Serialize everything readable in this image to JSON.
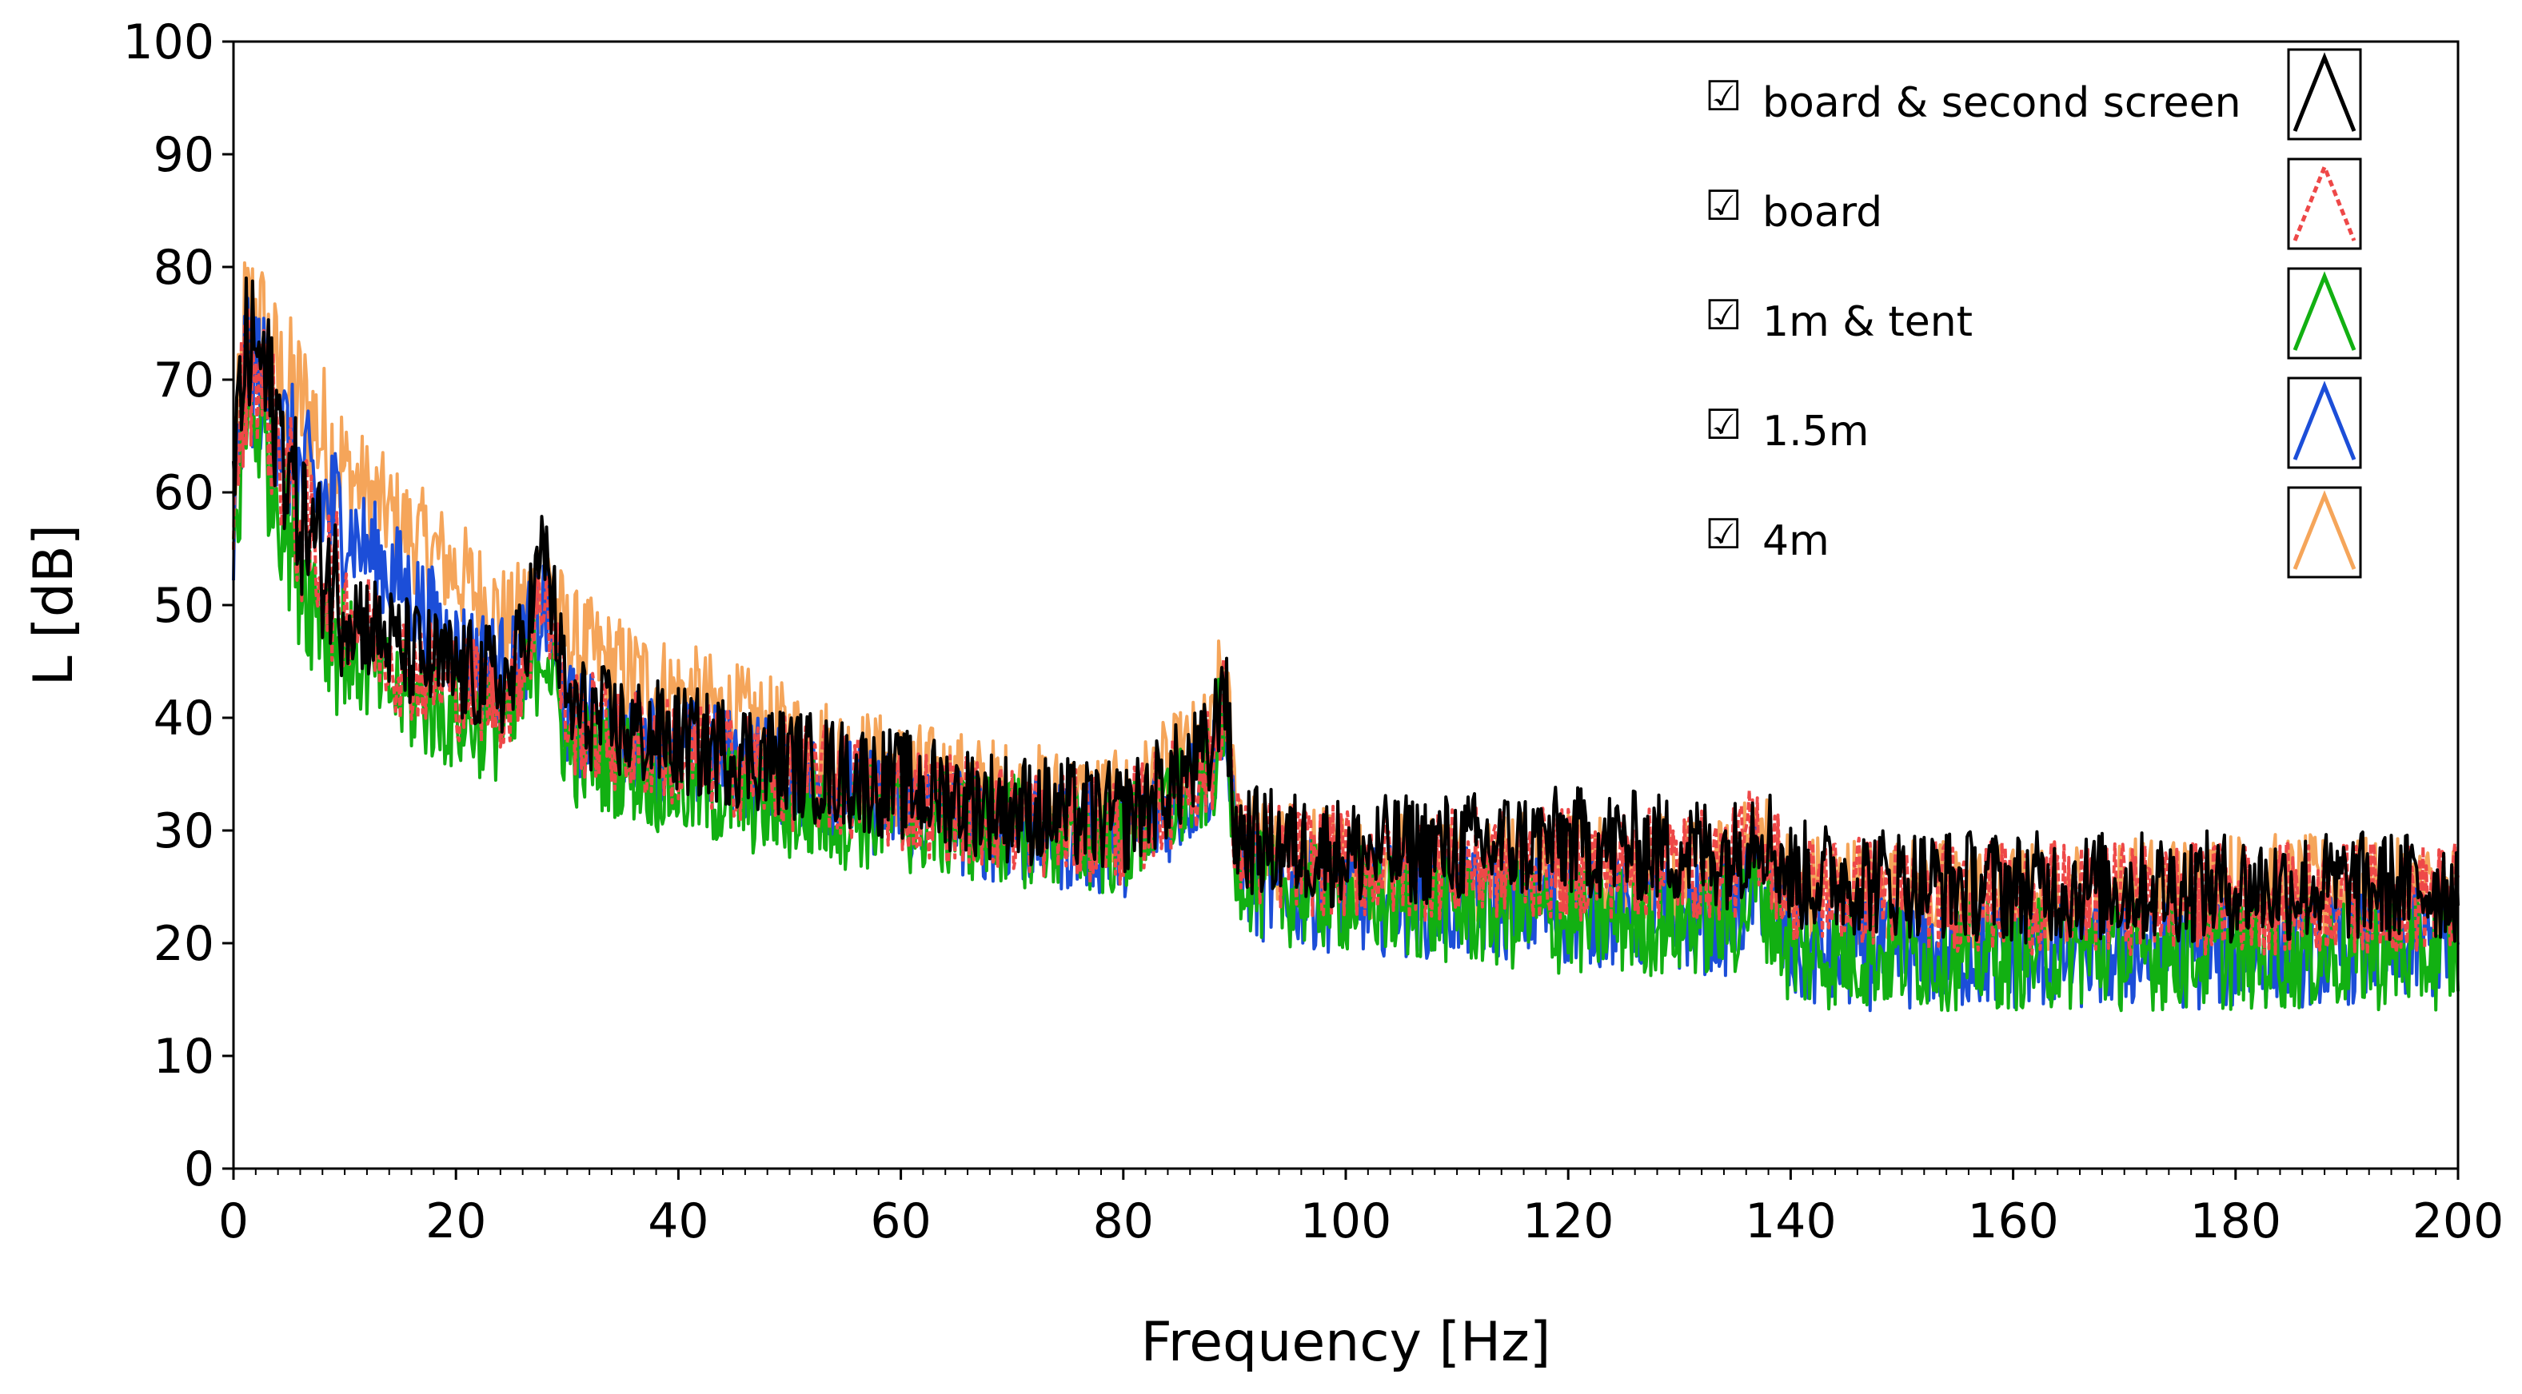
{
  "chart_data": {
    "type": "line",
    "xlabel": "Frequency [Hz]",
    "ylabel": "L [dB]",
    "xlim": [
      0,
      200
    ],
    "ylim": [
      0,
      100
    ],
    "x_ticks": [
      0,
      20,
      40,
      60,
      80,
      100,
      120,
      140,
      160,
      180,
      200
    ],
    "y_ticks": [
      0,
      10,
      20,
      30,
      40,
      50,
      60,
      70,
      80,
      90,
      100
    ],
    "grid": false,
    "legend_position": "top-right",
    "series": [
      {
        "name": "4m",
        "color": "#F5A55A",
        "style": "solid",
        "x": [
          0,
          1,
          2,
          4,
          6,
          10,
          15,
          20,
          25,
          28,
          30,
          35,
          40,
          50,
          60,
          70,
          80,
          88,
          89,
          90,
          92,
          100,
          120,
          135,
          137,
          140,
          160,
          180,
          200
        ],
        "y": [
          58,
          75,
          76,
          70,
          68,
          62,
          57,
          53,
          48,
          53,
          47,
          44,
          42,
          38,
          35,
          33,
          32,
          38,
          45,
          33,
          28,
          27,
          27,
          26,
          30,
          25,
          24,
          25,
          24
        ]
      },
      {
        "name": "1.5m",
        "color": "#1C4ED8",
        "style": "solid",
        "x": [
          0,
          1,
          2,
          4,
          6,
          10,
          15,
          20,
          25,
          28,
          30,
          35,
          40,
          50,
          60,
          70,
          80,
          88,
          89,
          90,
          92,
          100,
          120,
          135,
          137,
          140,
          160,
          180,
          200
        ],
        "y": [
          55,
          70,
          71,
          66,
          61,
          57,
          52,
          46,
          44,
          50,
          40,
          38,
          37,
          35,
          32,
          30,
          29,
          35,
          42,
          28,
          25,
          24,
          23,
          22,
          26,
          19,
          19,
          19,
          20
        ]
      },
      {
        "name": "1m & tent",
        "color": "#12B012",
        "style": "solid",
        "x": [
          0,
          1,
          2,
          4,
          6,
          10,
          15,
          20,
          25,
          28,
          30,
          35,
          40,
          50,
          60,
          70,
          80,
          88,
          89,
          90,
          92,
          100,
          120,
          135,
          137,
          140,
          160,
          180,
          200
        ],
        "y": [
          54,
          66,
          67,
          60,
          53,
          46,
          42,
          40,
          39,
          47,
          37,
          36,
          34,
          32,
          31,
          30,
          29,
          35,
          41,
          28,
          25,
          24,
          22,
          22,
          25,
          19,
          19,
          19,
          19
        ]
      },
      {
        "name": "board",
        "color": "#EE4848",
        "style": "dashed",
        "x": [
          0,
          1,
          2,
          4,
          6,
          10,
          15,
          20,
          25,
          28,
          30,
          35,
          40,
          50,
          60,
          70,
          80,
          88,
          89,
          90,
          92,
          100,
          120,
          135,
          137,
          140,
          160,
          180,
          200
        ],
        "y": [
          60,
          70,
          72,
          64,
          57,
          50,
          45,
          43,
          42,
          52,
          40,
          38,
          37,
          35,
          33,
          31,
          30,
          36,
          43,
          29,
          28,
          27,
          27,
          27,
          30,
          25,
          24,
          24,
          24
        ]
      },
      {
        "name": "board & second screen",
        "color": "#000000",
        "style": "solid",
        "x": [
          0,
          1,
          2,
          4,
          6,
          10,
          15,
          20,
          25,
          28,
          30,
          35,
          40,
          50,
          60,
          70,
          80,
          88,
          89,
          90,
          92,
          100,
          120,
          135,
          137,
          140,
          160,
          180,
          200
        ],
        "y": [
          62,
          72,
          73,
          66,
          58,
          50,
          46,
          44,
          43,
          55,
          41,
          39,
          38,
          36,
          34,
          32,
          31,
          37,
          45,
          30,
          29,
          28,
          29,
          28,
          31,
          26,
          25,
          25,
          25
        ]
      }
    ],
    "legend": [
      {
        "label": "board & second screen",
        "checked": "☑",
        "color": "#000000",
        "style": "solid"
      },
      {
        "label": "board",
        "checked": "☑",
        "color": "#EE4848",
        "style": "dashed"
      },
      {
        "label": "1m & tent",
        "checked": "☑",
        "color": "#12B012",
        "style": "solid"
      },
      {
        "label": "1.5m",
        "checked": "☑",
        "color": "#1C4ED8",
        "style": "solid"
      },
      {
        "label": "4m",
        "checked": "☑",
        "color": "#F5A55A",
        "style": "solid"
      }
    ]
  }
}
